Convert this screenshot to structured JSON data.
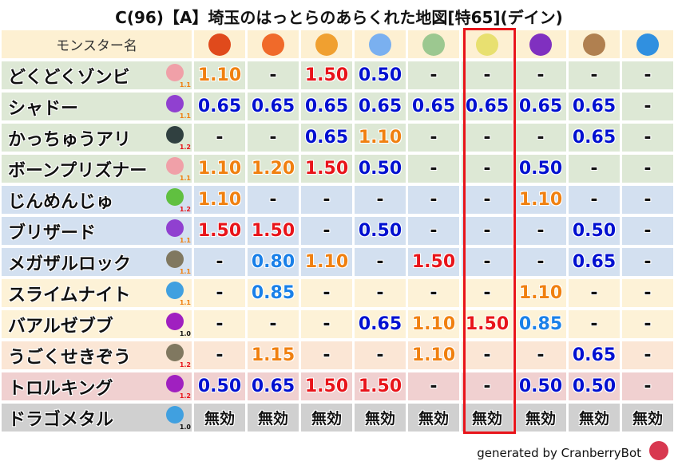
{
  "title": "C(96)【A】埼玉のはっとらのあらくれた地図[特65](デイン)",
  "header": {
    "name_col": "モンスター名",
    "elements": [
      {
        "icon": "fire-ball-icon",
        "color": "#e04a1c"
      },
      {
        "icon": "flame-icon",
        "color": "#f06a2a"
      },
      {
        "icon": "explosion-icon",
        "color": "#f0a030"
      },
      {
        "icon": "ice-icon",
        "color": "#7ab0f0"
      },
      {
        "icon": "wind-icon",
        "color": "#9cc890"
      },
      {
        "icon": "lightning-icon",
        "color": "#e8e070"
      },
      {
        "icon": "darkness-icon",
        "color": "#8030c0"
      },
      {
        "icon": "earth-icon",
        "color": "#b08050"
      },
      {
        "icon": "water-icon",
        "color": "#3090e0"
      }
    ]
  },
  "highlighted_column": 6,
  "colors": {
    "orange": "#f08010",
    "red": "#e8141a",
    "darkblue": "#0010d0",
    "lightblue": "#1a80e8",
    "black": "#111111"
  },
  "rows": [
    {
      "name": "どくどくゾンビ",
      "icon": "skull-icon",
      "icon_color": "#f0a0a8",
      "mult": "1.1",
      "mult_color": "orange",
      "bg": "g",
      "values": [
        [
          "1.10",
          "orange"
        ],
        [
          "-",
          "black"
        ],
        [
          "1.50",
          "red"
        ],
        [
          "0.50",
          "darkblue"
        ],
        [
          "-",
          "black"
        ],
        [
          "-",
          "black"
        ],
        [
          "-",
          "black"
        ],
        [
          "-",
          "black"
        ],
        [
          "-",
          "black"
        ]
      ]
    },
    {
      "name": "シャドー",
      "icon": "shadow-icon",
      "icon_color": "#9040d0",
      "mult": "1.1",
      "mult_color": "orange",
      "bg": "g",
      "values": [
        [
          "0.65",
          "darkblue"
        ],
        [
          "0.65",
          "darkblue"
        ],
        [
          "0.65",
          "darkblue"
        ],
        [
          "0.65",
          "darkblue"
        ],
        [
          "0.65",
          "darkblue"
        ],
        [
          "0.65",
          "darkblue"
        ],
        [
          "0.65",
          "darkblue"
        ],
        [
          "0.65",
          "darkblue"
        ],
        [
          "-",
          "black"
        ]
      ]
    },
    {
      "name": "かっちゅうアリ",
      "icon": "bug-icon",
      "icon_color": "#304040",
      "mult": "1.2",
      "mult_color": "red",
      "bg": "g",
      "values": [
        [
          "-",
          "black"
        ],
        [
          "-",
          "black"
        ],
        [
          "0.65",
          "darkblue"
        ],
        [
          "1.10",
          "orange"
        ],
        [
          "-",
          "black"
        ],
        [
          "-",
          "black"
        ],
        [
          "-",
          "black"
        ],
        [
          "0.65",
          "darkblue"
        ],
        [
          "-",
          "black"
        ]
      ]
    },
    {
      "name": "ボーンプリズナー",
      "icon": "skull-icon",
      "icon_color": "#f0a0a8",
      "mult": "1.1",
      "mult_color": "orange",
      "bg": "g",
      "values": [
        [
          "1.10",
          "orange"
        ],
        [
          "1.20",
          "orange"
        ],
        [
          "1.50",
          "red"
        ],
        [
          "0.50",
          "darkblue"
        ],
        [
          "-",
          "black"
        ],
        [
          "-",
          "black"
        ],
        [
          "0.50",
          "darkblue"
        ],
        [
          "-",
          "black"
        ],
        [
          "-",
          "black"
        ]
      ]
    },
    {
      "name": "じんめんじゅ",
      "icon": "leaf-icon",
      "icon_color": "#60c040",
      "mult": "1.2",
      "mult_color": "red",
      "bg": "b",
      "values": [
        [
          "1.10",
          "orange"
        ],
        [
          "-",
          "black"
        ],
        [
          "-",
          "black"
        ],
        [
          "-",
          "black"
        ],
        [
          "-",
          "black"
        ],
        [
          "-",
          "black"
        ],
        [
          "1.10",
          "orange"
        ],
        [
          "-",
          "black"
        ],
        [
          "-",
          "black"
        ]
      ]
    },
    {
      "name": "ブリザード",
      "icon": "shadow-icon",
      "icon_color": "#9040d0",
      "mult": "1.1",
      "mult_color": "orange",
      "bg": "b",
      "values": [
        [
          "1.50",
          "red"
        ],
        [
          "1.50",
          "red"
        ],
        [
          "-",
          "black"
        ],
        [
          "0.50",
          "darkblue"
        ],
        [
          "-",
          "black"
        ],
        [
          "-",
          "black"
        ],
        [
          "-",
          "black"
        ],
        [
          "0.50",
          "darkblue"
        ],
        [
          "-",
          "black"
        ]
      ]
    },
    {
      "name": "メガザルロック",
      "icon": "brick-icon",
      "icon_color": "#807860",
      "mult": "1.1",
      "mult_color": "orange",
      "bg": "b",
      "values": [
        [
          "-",
          "black"
        ],
        [
          "0.80",
          "lightblue"
        ],
        [
          "1.10",
          "orange"
        ],
        [
          "-",
          "black"
        ],
        [
          "1.50",
          "red"
        ],
        [
          "-",
          "black"
        ],
        [
          "-",
          "black"
        ],
        [
          "0.65",
          "darkblue"
        ],
        [
          "-",
          "black"
        ]
      ]
    },
    {
      "name": "スライムナイト",
      "icon": "slime-icon",
      "icon_color": "#40a0e0",
      "mult": "1.1",
      "mult_color": "orange",
      "bg": "y",
      "values": [
        [
          "-",
          "black"
        ],
        [
          "0.85",
          "lightblue"
        ],
        [
          "-",
          "black"
        ],
        [
          "-",
          "black"
        ],
        [
          "-",
          "black"
        ],
        [
          "-",
          "black"
        ],
        [
          "1.10",
          "orange"
        ],
        [
          "-",
          "black"
        ],
        [
          "-",
          "black"
        ]
      ]
    },
    {
      "name": "バアルゼブブ",
      "icon": "devil-icon",
      "icon_color": "#a020c0",
      "mult": "1.0",
      "mult_color": "black",
      "bg": "y",
      "values": [
        [
          "-",
          "black"
        ],
        [
          "-",
          "black"
        ],
        [
          "-",
          "black"
        ],
        [
          "0.65",
          "darkblue"
        ],
        [
          "1.10",
          "orange"
        ],
        [
          "1.50",
          "red"
        ],
        [
          "0.85",
          "lightblue"
        ],
        [
          "-",
          "black"
        ],
        [
          "-",
          "black"
        ]
      ]
    },
    {
      "name": "うごくせきぞう",
      "icon": "brick-icon",
      "icon_color": "#807860",
      "mult": "1.2",
      "mult_color": "red",
      "bg": "o",
      "values": [
        [
          "-",
          "black"
        ],
        [
          "1.15",
          "orange"
        ],
        [
          "-",
          "black"
        ],
        [
          "-",
          "black"
        ],
        [
          "1.10",
          "orange"
        ],
        [
          "-",
          "black"
        ],
        [
          "-",
          "black"
        ],
        [
          "0.65",
          "darkblue"
        ],
        [
          "-",
          "black"
        ]
      ]
    },
    {
      "name": "トロルキング",
      "icon": "devil-icon",
      "icon_color": "#a020c0",
      "mult": "1.2",
      "mult_color": "red",
      "bg": "p",
      "values": [
        [
          "0.50",
          "darkblue"
        ],
        [
          "0.65",
          "darkblue"
        ],
        [
          "1.50",
          "red"
        ],
        [
          "1.50",
          "red"
        ],
        [
          "-",
          "black"
        ],
        [
          "-",
          "black"
        ],
        [
          "0.50",
          "darkblue"
        ],
        [
          "0.50",
          "darkblue"
        ],
        [
          "-",
          "black"
        ]
      ]
    },
    {
      "name": "ドラゴメタル",
      "icon": "slime-icon",
      "icon_color": "#40a0e0",
      "mult": "1.0",
      "mult_color": "black",
      "bg": "gr",
      "values": [
        [
          "無効",
          "black"
        ],
        [
          "無効",
          "black"
        ],
        [
          "無効",
          "black"
        ],
        [
          "無効",
          "black"
        ],
        [
          "無効",
          "black"
        ],
        [
          "無効",
          "black"
        ],
        [
          "無効",
          "black"
        ],
        [
          "無効",
          "black"
        ],
        [
          "無効",
          "black"
        ]
      ]
    }
  ],
  "footer": {
    "text": "generated by CranberryBot",
    "icon": "cranberry-bot-icon"
  }
}
